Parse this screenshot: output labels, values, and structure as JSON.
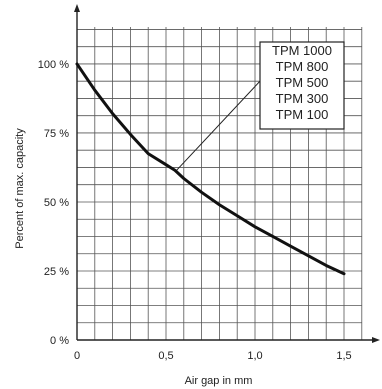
{
  "chart_data": {
    "type": "line",
    "xlabel": "Air gap in mm",
    "ylabel": "Percent of max. capacity",
    "xlim": [
      0,
      1.5
    ],
    "ylim": [
      0,
      100
    ],
    "grid": true,
    "x_ticks": [
      {
        "value": 0,
        "label": "0"
      },
      {
        "value": 0.5,
        "label": "0,5"
      },
      {
        "value": 1.0,
        "label": "1,0"
      },
      {
        "value": 1.5,
        "label": "1,5"
      }
    ],
    "y_ticks": [
      {
        "value": 0,
        "label": "0 %"
      },
      {
        "value": 25,
        "label": "25 %"
      },
      {
        "value": 50,
        "label": "50 %"
      },
      {
        "value": 75,
        "label": "75 %"
      },
      {
        "value": 100,
        "label": "100 %"
      }
    ],
    "series": [
      {
        "name": "",
        "x": [
          0,
          0.1,
          0.2,
          0.3,
          0.4,
          0.5,
          0.55,
          0.6,
          0.7,
          0.8,
          0.9,
          1.0,
          1.1,
          1.2,
          1.3,
          1.4,
          1.5
        ],
        "y": [
          100,
          90.5,
          82,
          74.5,
          67.5,
          63.5,
          61.5,
          58.5,
          53.5,
          49,
          45,
          41,
          37.5,
          34,
          30.5,
          27,
          24
        ]
      }
    ],
    "annotation": {
      "labels": [
        "TPM 1000",
        "TPM 800",
        "TPM 500",
        "TPM 300",
        "TPM 100"
      ],
      "points_to": {
        "x": 0.56,
        "y": 61.5
      }
    }
  }
}
